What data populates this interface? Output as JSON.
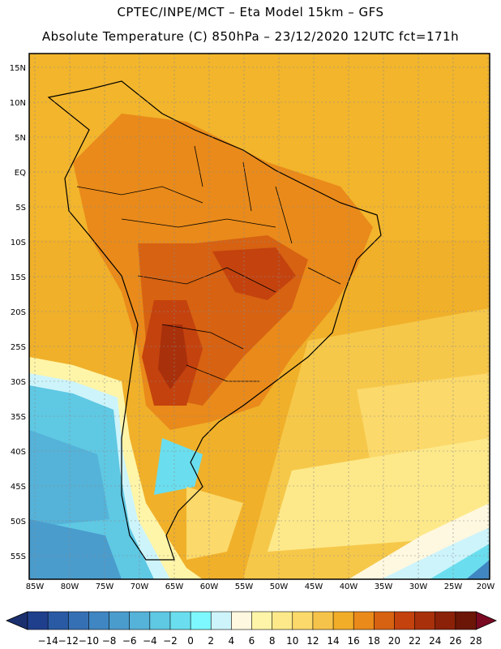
{
  "header": {
    "title_line1": "CPTEC/INPE/MCT –  Eta Model 15km – GFS",
    "title_line2": "Absolute Temperature (C) 850hPa – 23/12/2020 12UTC fct=171h"
  },
  "axes": {
    "lat_labels": [
      "15N",
      "10N",
      "5N",
      "EQ",
      "5S",
      "10S",
      "15S",
      "20S",
      "25S",
      "30S",
      "35S",
      "40S",
      "45S",
      "50S",
      "55S"
    ],
    "lon_labels": [
      "85W",
      "80W",
      "75W",
      "70W",
      "65W",
      "60W",
      "55W",
      "50W",
      "45W",
      "40W",
      "35W",
      "30W",
      "25W",
      "20W"
    ]
  },
  "colorbar": {
    "labels": [
      "-14",
      "-12",
      "-10",
      "-8",
      "-6",
      "-4",
      "-2",
      "0",
      "2",
      "4",
      "6",
      "8",
      "10",
      "12",
      "14",
      "16",
      "18",
      "20",
      "22",
      "24",
      "26",
      "28"
    ],
    "colors": [
      "#1f3f8c",
      "#2a5aa4",
      "#3570b4",
      "#3f86c2",
      "#4a9ccd",
      "#55b2d8",
      "#5fc8e3",
      "#6adeee",
      "#7ef8ff",
      "#cdf4fb",
      "#fff8e0",
      "#fff5a8",
      "#fde98a",
      "#fbd96a",
      "#f6c34a",
      "#f1ad28",
      "#e98a1a",
      "#d66212",
      "#c4420e",
      "#a8300b",
      "#8a2108",
      "#6b1606"
    ],
    "low_arrow_color": "#1a2f6e",
    "high_arrow_color": "#7a0a22"
  }
}
